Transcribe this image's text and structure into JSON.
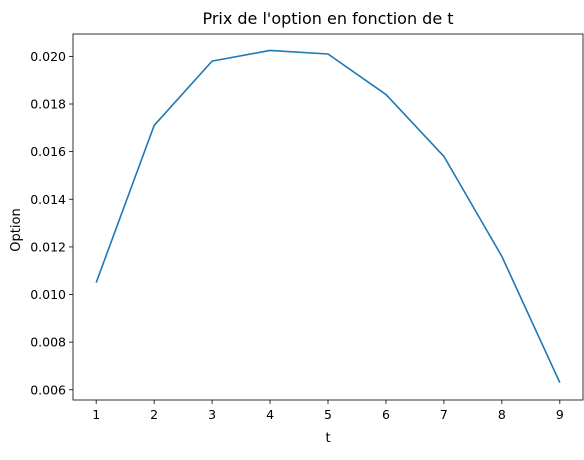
{
  "chart_data": {
    "type": "line",
    "title": "Prix de l'option en fonction de t",
    "xlabel": "t",
    "ylabel": "Option",
    "x": [
      1,
      2,
      3,
      4,
      5,
      6,
      7,
      8,
      9
    ],
    "series": [
      {
        "values": [
          0.0105,
          0.0171,
          0.0198,
          0.02025,
          0.0201,
          0.0184,
          0.0158,
          0.0116,
          0.0063
        ],
        "color": "#1f77b4"
      }
    ],
    "xticks": [
      "1",
      "2",
      "3",
      "4",
      "5",
      "6",
      "7",
      "8",
      "9"
    ],
    "yticks": [
      "0.006",
      "0.008",
      "0.010",
      "0.012",
      "0.014",
      "0.016",
      "0.018",
      "0.020"
    ],
    "xlim": [
      0.6,
      9.4
    ],
    "ylim": [
      0.00557,
      0.02094
    ],
    "grid": false,
    "legend": "none"
  }
}
